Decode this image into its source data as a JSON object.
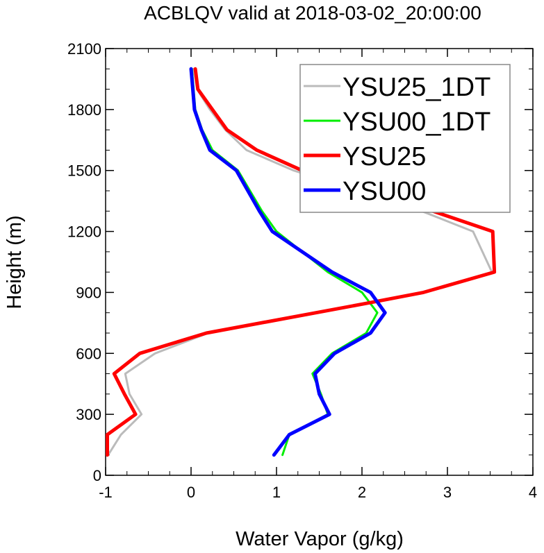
{
  "chart_data": {
    "type": "line",
    "title": "ACBLQV valid at 2018-03-02_20:00:00",
    "xlabel": "Water Vapor (g/kg)",
    "ylabel": "Height (m)",
    "xlim": [
      -1,
      4
    ],
    "ylim": [
      0,
      2100
    ],
    "x_ticks": [
      -1,
      0,
      1,
      2,
      3,
      4
    ],
    "y_ticks": [
      0,
      300,
      600,
      900,
      1200,
      1500,
      1800,
      2100
    ],
    "legend_position": "top-right",
    "grid": false,
    "series": [
      {
        "name": "YSU25_1DT",
        "color": "#bbbbbb",
        "width": 3,
        "points": [
          [
            -0.97,
            100
          ],
          [
            -0.82,
            200
          ],
          [
            -0.58,
            300
          ],
          [
            -0.72,
            400
          ],
          [
            -0.77,
            500
          ],
          [
            -0.42,
            600
          ],
          [
            0.2,
            700
          ],
          [
            2.12,
            850
          ],
          [
            2.73,
            900
          ],
          [
            3.52,
            1000
          ],
          [
            3.3,
            1200
          ],
          [
            2.7,
            1300
          ],
          [
            1.2,
            1500
          ],
          [
            0.65,
            1600
          ],
          [
            0.4,
            1700
          ],
          [
            0.22,
            1800
          ],
          [
            0.07,
            1900
          ],
          [
            0.03,
            2000
          ]
        ]
      },
      {
        "name": "YSU00_1DT",
        "color": "#00ee00",
        "width": 3,
        "points": [
          [
            1.07,
            100
          ],
          [
            1.15,
            200
          ],
          [
            1.6,
            300
          ],
          [
            1.52,
            400
          ],
          [
            1.42,
            500
          ],
          [
            1.65,
            600
          ],
          [
            2.05,
            700
          ],
          [
            2.18,
            800
          ],
          [
            2.0,
            900
          ],
          [
            1.6,
            1000
          ],
          [
            1.0,
            1200
          ],
          [
            0.83,
            1300
          ],
          [
            0.55,
            1500
          ],
          [
            0.25,
            1600
          ],
          [
            0.13,
            1700
          ],
          [
            0.05,
            1800
          ],
          [
            0.03,
            1900
          ],
          [
            0.01,
            2000
          ]
        ]
      },
      {
        "name": "YSU25",
        "color": "#ff0000",
        "width": 5,
        "points": [
          [
            -0.98,
            100
          ],
          [
            -0.98,
            200
          ],
          [
            -0.65,
            300
          ],
          [
            -0.78,
            400
          ],
          [
            -0.9,
            500
          ],
          [
            -0.6,
            600
          ],
          [
            0.18,
            700
          ],
          [
            2.1,
            850
          ],
          [
            2.72,
            900
          ],
          [
            3.55,
            1000
          ],
          [
            3.53,
            1200
          ],
          [
            2.83,
            1300
          ],
          [
            1.3,
            1500
          ],
          [
            0.77,
            1600
          ],
          [
            0.42,
            1700
          ],
          [
            0.25,
            1800
          ],
          [
            0.08,
            1900
          ],
          [
            0.05,
            2000
          ]
        ]
      },
      {
        "name": "YSU00",
        "color": "#0000ff",
        "width": 5,
        "points": [
          [
            0.97,
            100
          ],
          [
            1.15,
            200
          ],
          [
            1.62,
            300
          ],
          [
            1.5,
            400
          ],
          [
            1.45,
            500
          ],
          [
            1.68,
            600
          ],
          [
            2.1,
            700
          ],
          [
            2.27,
            800
          ],
          [
            2.1,
            900
          ],
          [
            1.65,
            1000
          ],
          [
            0.95,
            1200
          ],
          [
            0.8,
            1300
          ],
          [
            0.53,
            1500
          ],
          [
            0.22,
            1600
          ],
          [
            0.12,
            1700
          ],
          [
            0.04,
            1800
          ],
          [
            0.02,
            1900
          ],
          [
            0.0,
            2000
          ]
        ]
      }
    ]
  }
}
